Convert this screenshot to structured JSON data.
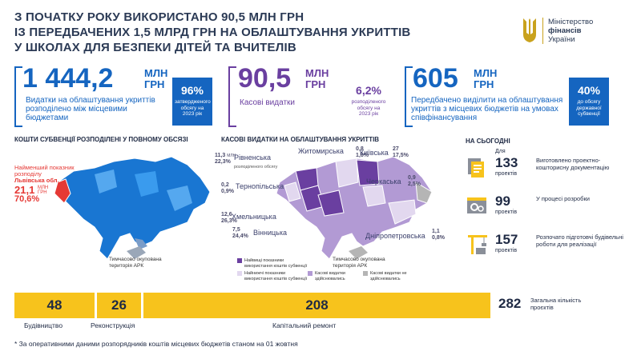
{
  "title": {
    "line1": "З ПОЧАТКУ РОКУ ВИКОРИСТАНО 90,5 МЛН ГРН",
    "line2": "ІЗ ПЕРЕДБАЧЕНИХ 1,5 МЛРД ГРН НА ОБЛАШТУВАННЯ УКРИТТІВ",
    "line3": "У ШКОЛАХ ДЛЯ БЕЗПЕКИ ДІТЕЙ ТА ВЧИТЕЛІВ"
  },
  "logo": {
    "line1": "Міністерство",
    "line2": "фінансів",
    "line3": "України"
  },
  "cards": [
    {
      "big": "1 444,2",
      "unit1": "МЛН",
      "unit2": "ГРН",
      "desc": "Видатки на облаштування укриттів розподілено між місцевими бюджетами",
      "pct": "96%",
      "pct_note": "затвердженого обсягу на 2023 рік"
    },
    {
      "big": "90,5",
      "unit1": "МЛН",
      "unit2": "ГРН",
      "desc": "Касові видатки",
      "pct": "6,2%",
      "pct_note": "розподіленого обсягу на 2023 рік"
    },
    {
      "big": "605",
      "unit1": "МЛН",
      "unit2": "ГРН",
      "desc": "Передбачено виділити на облаштування укриттів з місцевих бюджетів на умовах співфінансування",
      "pct": "40%",
      "pct_note": "до обсягу державної субвенції"
    }
  ],
  "map1": {
    "title": "КОШТИ СУБВЕНЦІЇ РОЗПОДІЛЕНІ У ПОВНОМУ ОБСЯЗІ",
    "note1": "Найменший показник",
    "note2": "розподілу",
    "region": "Львівська обл.",
    "v1": "21,1",
    "v1_unit": "МЛН ГРН",
    "v2": "70,6%",
    "occupied1": "Тимчасово окупована",
    "occupied2": "територія АРК"
  },
  "map2": {
    "title": "КАСОВІ ВИДАТКИ НА ОБЛАШТУВАННЯ УКРИТТІВ",
    "regions": [
      {
        "name": "Рівненська",
        "v1": "11,3",
        "v1u": "МЛН",
        "v2": "22,3%",
        "note": "розподіленого обсягу"
      },
      {
        "name": "Житомирська",
        "v1": "0,8",
        "v2": "1,8%"
      },
      {
        "name": "Київська",
        "v1": "27",
        "v2": "17,5%"
      },
      {
        "name": "Тернопільська",
        "v1": "0,2",
        "v2": "0,9%"
      },
      {
        "name": "Черкаська",
        "v1": "0,9",
        "v2": "2,5%"
      },
      {
        "name": "Хмельницька",
        "v1": "12,6",
        "v2": "26,3%"
      },
      {
        "name": "Вінницька",
        "v1": "7,5",
        "v2": "24,4%"
      },
      {
        "name": "Дніпропетровська",
        "v1": "1,1",
        "v2": "0,8%"
      }
    ],
    "occupied1": "Тимчасово окупована",
    "occupied2": "територія АРК",
    "legend": [
      {
        "color": "#6a3fa0",
        "text1": "Найвищі показники",
        "text2": "використання коштів субвенції"
      },
      {
        "color": "#e2d8ef",
        "text1": "Найнижчі показники",
        "text2": "використання коштів субвенції"
      },
      {
        "color": "#b29ad4",
        "text1": "Касові видатки",
        "text2": "здійснювались"
      },
      {
        "color": "#b5b5b5",
        "text1": "Касові видатки не",
        "text2": "здійснювались"
      }
    ]
  },
  "status": {
    "title": "НА СЬОГОДНІ",
    "items": [
      {
        "pre": "Для",
        "num": "133",
        "label": "проектів",
        "desc": "Виготовлено проектно-кошторисну документацію"
      },
      {
        "pre": "",
        "num": "99",
        "label": "проектів",
        "desc": "У процесі розробки"
      },
      {
        "pre": "",
        "num": "157",
        "label": "проектів",
        "desc": "Розпочато підготовчі будівельні роботи для реалізації"
      }
    ]
  },
  "bars": [
    {
      "value": "48",
      "label": "Будівництво"
    },
    {
      "value": "26",
      "label": "Реконструкція"
    },
    {
      "value": "208",
      "label": "Капітальний ремонт"
    }
  ],
  "total": {
    "value": "282",
    "label1": "Загальна кількість",
    "label2": "проєктів"
  },
  "footnote": "* За оперативними даними розпорядників коштів місцевих бюджетів станом на 01 жовтня",
  "colors": {
    "blue": "#1565c0",
    "purple": "#6a3fa0",
    "lightpurple": "#b29ad4",
    "yellow": "#f7c31c",
    "red": "#e53935",
    "gray": "#b5b5b5"
  }
}
